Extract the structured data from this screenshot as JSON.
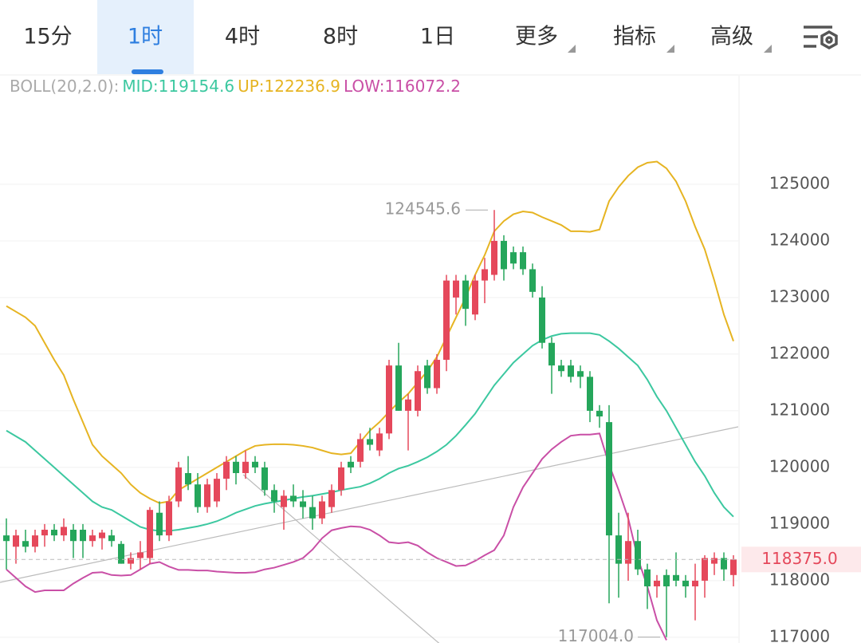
{
  "tabs": [
    "15分",
    "1时",
    "4时",
    "8时",
    "1日",
    "更多",
    "指标",
    "高级"
  ],
  "active_tab": 1,
  "chart_data": {
    "type": "candlestick",
    "up_color": "#e5485b",
    "down_color": "#25a65b",
    "ylim": [
      116900,
      126915
    ],
    "yticks": [
      117000,
      118000,
      119000,
      120000,
      121000,
      122000,
      123000,
      124000,
      125000
    ],
    "grid": true,
    "open": [
      118800,
      118600,
      118700,
      118600,
      118800,
      118900,
      118800,
      118900,
      118900,
      118700,
      118750,
      118800,
      118650,
      118300,
      118400,
      118400,
      119200,
      118800,
      119400,
      119900,
      119700,
      119300,
      119400,
      119800,
      120100,
      119900,
      120100,
      120000,
      119600,
      119300,
      119500,
      119400,
      119300,
      119100,
      119300,
      119600,
      120100,
      120100,
      120500,
      120300,
      120600,
      121800,
      121000,
      121000,
      121800,
      121400,
      121900,
      123000,
      123300,
      122700,
      123300,
      123400,
      124000,
      123800,
      123800,
      123500,
      123000,
      122200,
      121800,
      121800,
      121700,
      121600,
      121000,
      120800,
      118800,
      118300,
      118700,
      118200,
      117900,
      118100,
      118100,
      118000,
      117900,
      118000,
      118300,
      118400,
      118100
    ],
    "high": [
      119100,
      118900,
      118900,
      118900,
      119000,
      119000,
      119100,
      119000,
      119000,
      118900,
      118900,
      118900,
      118700,
      118500,
      118700,
      119300,
      119400,
      119500,
      120100,
      120200,
      119900,
      119800,
      119900,
      120200,
      120200,
      120300,
      120200,
      120100,
      119700,
      119600,
      119700,
      119600,
      119500,
      119500,
      119700,
      120100,
      120200,
      120600,
      120700,
      120700,
      121900,
      122200,
      121300,
      121800,
      121900,
      122000,
      123400,
      123400,
      123400,
      123400,
      123700,
      124545.6,
      124100,
      123900,
      123900,
      123600,
      123200,
      122300,
      121900,
      121900,
      121800,
      121700,
      121100,
      121100,
      119200,
      119200,
      118900,
      118300,
      118100,
      118200,
      118500,
      118100,
      118300,
      118450,
      118500,
      118500,
      118450
    ],
    "low": [
      118200,
      118300,
      118500,
      118500,
      118600,
      118700,
      118700,
      118400,
      118400,
      118600,
      118550,
      118600,
      118300,
      118200,
      118200,
      118300,
      118700,
      118700,
      119300,
      119600,
      119200,
      119200,
      119300,
      119600,
      119700,
      119800,
      119900,
      119500,
      119200,
      118900,
      119300,
      119100,
      118900,
      119000,
      119200,
      119500,
      119900,
      120000,
      120300,
      120200,
      120500,
      121000,
      120300,
      120900,
      121300,
      121300,
      121700,
      122700,
      122500,
      122600,
      122900,
      123300,
      123300,
      123500,
      123400,
      123000,
      122100,
      121300,
      121600,
      121500,
      121400,
      120800,
      120700,
      117600,
      117700,
      118000,
      118100,
      117500,
      117700,
      117004,
      117900,
      117700,
      117300,
      117700,
      118100,
      118000,
      117900
    ],
    "close": [
      118700,
      118800,
      118600,
      118800,
      118900,
      118800,
      118950,
      118700,
      118700,
      118800,
      118850,
      118700,
      118300,
      118400,
      118500,
      119250,
      118800,
      119400,
      120000,
      119700,
      119300,
      119700,
      119800,
      120100,
      119900,
      120100,
      120000,
      119600,
      119400,
      119500,
      119400,
      119300,
      119100,
      119400,
      119600,
      120000,
      120000,
      120500,
      120400,
      120600,
      121800,
      121000,
      121200,
      121700,
      121400,
      121900,
      123300,
      123300,
      122800,
      123300,
      123500,
      124000,
      123500,
      123600,
      123500,
      123100,
      122200,
      121800,
      121700,
      121600,
      121600,
      121000,
      120900,
      118800,
      118300,
      118700,
      118200,
      117900,
      118000,
      117900,
      118000,
      117900,
      118000,
      118400,
      118400,
      118200,
      118375
    ],
    "boll": {
      "label": "BOLL(20,2.0):",
      "lines": [
        {
          "label": "MID:119154.6",
          "color": "#3cc8a0",
          "values": [
            120650,
            120550,
            120450,
            120300,
            120150,
            120000,
            119850,
            119700,
            119550,
            119400,
            119300,
            119250,
            119150,
            119050,
            118950,
            118900,
            118880,
            118880,
            118900,
            118930,
            118960,
            119000,
            119050,
            119120,
            119200,
            119260,
            119320,
            119360,
            119390,
            119420,
            119450,
            119480,
            119500,
            119530,
            119560,
            119600,
            119630,
            119660,
            119720,
            119800,
            119900,
            119980,
            120030,
            120100,
            120180,
            120280,
            120400,
            120560,
            120750,
            120950,
            121200,
            121450,
            121650,
            121850,
            122000,
            122150,
            122250,
            122320,
            122360,
            122370,
            122370,
            122370,
            122340,
            122230,
            122100,
            121950,
            121800,
            121550,
            121250,
            121000,
            120700,
            120400,
            120100,
            119850,
            119550,
            119300,
            119130
          ]
        },
        {
          "label": "UP:122236.9",
          "color": "#e6b422",
          "values": [
            122850,
            122750,
            122650,
            122500,
            122200,
            121900,
            121630,
            121200,
            120800,
            120400,
            120200,
            120050,
            119900,
            119700,
            119550,
            119450,
            119370,
            119400,
            119600,
            119700,
            119800,
            119900,
            120000,
            120100,
            120200,
            120300,
            120380,
            120400,
            120410,
            120410,
            120400,
            120380,
            120350,
            120300,
            120250,
            120230,
            120250,
            120450,
            120650,
            120800,
            120980,
            121150,
            121300,
            121500,
            121700,
            121950,
            122300,
            122650,
            123000,
            123400,
            123750,
            124170,
            124350,
            124470,
            124520,
            124500,
            124420,
            124350,
            124280,
            124170,
            124170,
            124160,
            124200,
            124700,
            124950,
            125150,
            125300,
            125380,
            125400,
            125280,
            125050,
            124700,
            124250,
            123850,
            123300,
            122700,
            122230
          ]
        },
        {
          "label": "LOW:116072.2",
          "color": "#c94fa6",
          "values": [
            118200,
            118050,
            117900,
            117800,
            117830,
            117830,
            117830,
            117950,
            118050,
            118140,
            118150,
            118100,
            118090,
            118100,
            118200,
            118300,
            118330,
            118250,
            118190,
            118190,
            118180,
            118180,
            118160,
            118150,
            118140,
            118140,
            118150,
            118200,
            118230,
            118280,
            118330,
            118400,
            118550,
            118750,
            118890,
            118930,
            118960,
            118950,
            118900,
            118800,
            118680,
            118660,
            118680,
            118620,
            118500,
            118400,
            118330,
            118260,
            118270,
            118350,
            118450,
            118540,
            118800,
            119300,
            119650,
            119900,
            120150,
            120320,
            120450,
            120560,
            120580,
            120580,
            120600,
            120050,
            119600,
            119100,
            118400,
            117900,
            117300,
            116950,
            null,
            null,
            null,
            null,
            null,
            null,
            null
          ]
        }
      ]
    },
    "low_marker": {
      "value": 117004,
      "label": "117004.0"
    },
    "last_price": {
      "value": 118375,
      "label": "118375.0"
    }
  }
}
